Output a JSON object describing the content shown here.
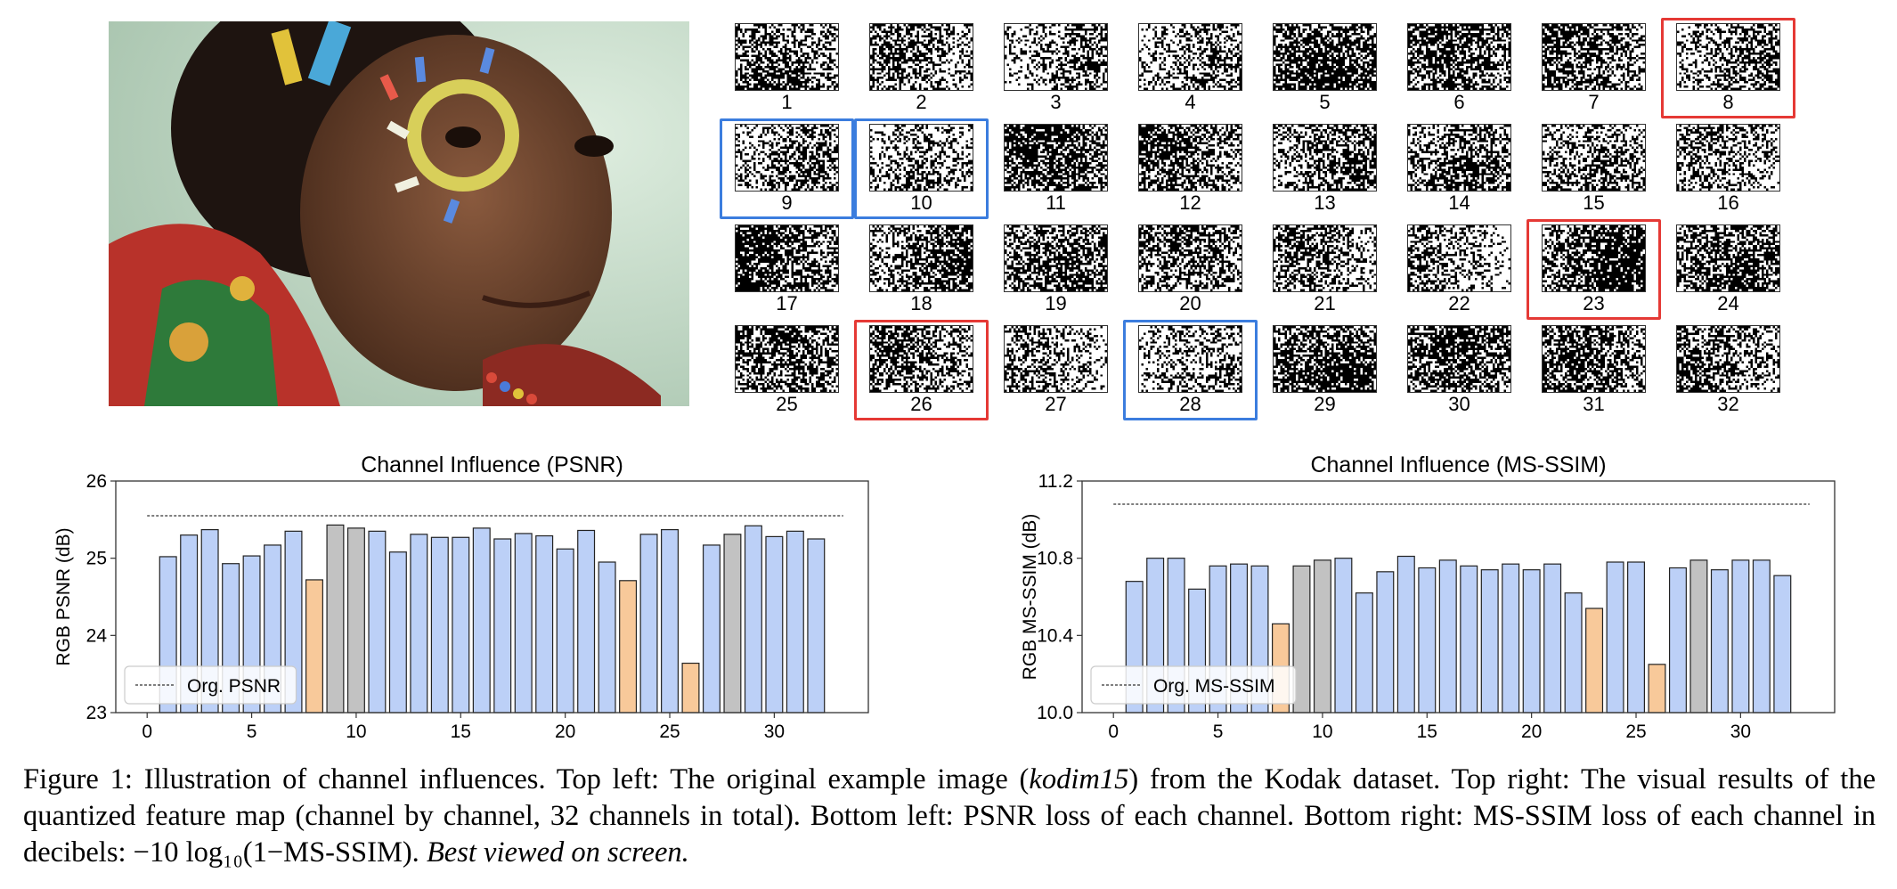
{
  "grid": {
    "channels": [
      {
        "n": "1"
      },
      {
        "n": "2"
      },
      {
        "n": "3"
      },
      {
        "n": "4"
      },
      {
        "n": "5"
      },
      {
        "n": "6"
      },
      {
        "n": "7"
      },
      {
        "n": "8",
        "hl": "red"
      },
      {
        "n": "9",
        "hl": "blue"
      },
      {
        "n": "10",
        "hl": "blue"
      },
      {
        "n": "11"
      },
      {
        "n": "12"
      },
      {
        "n": "13"
      },
      {
        "n": "14"
      },
      {
        "n": "15"
      },
      {
        "n": "16"
      },
      {
        "n": "17"
      },
      {
        "n": "18"
      },
      {
        "n": "19"
      },
      {
        "n": "20"
      },
      {
        "n": "21"
      },
      {
        "n": "22"
      },
      {
        "n": "23",
        "hl": "red"
      },
      {
        "n": "24"
      },
      {
        "n": "25"
      },
      {
        "n": "26",
        "hl": "red"
      },
      {
        "n": "27"
      },
      {
        "n": "28",
        "hl": "blue"
      },
      {
        "n": "29"
      },
      {
        "n": "30"
      },
      {
        "n": "31"
      },
      {
        "n": "32"
      }
    ],
    "highlight_colors": {
      "red": "#e53935",
      "blue": "#3b7dde"
    }
  },
  "chart_data": [
    {
      "type": "bar",
      "title": "Channel Influence (PSNR)",
      "ylabel": "RGB PSNR (dB)",
      "xlabel": "",
      "x": [
        1,
        2,
        3,
        4,
        5,
        6,
        7,
        8,
        9,
        10,
        11,
        12,
        13,
        14,
        15,
        16,
        17,
        18,
        19,
        20,
        21,
        22,
        23,
        24,
        25,
        26,
        27,
        28,
        29,
        30,
        31,
        32
      ],
      "values": [
        25.02,
        25.3,
        25.37,
        24.93,
        25.03,
        25.17,
        25.35,
        24.72,
        25.43,
        25.39,
        25.35,
        25.08,
        25.31,
        25.27,
        25.27,
        25.39,
        25.25,
        25.32,
        25.29,
        25.12,
        25.36,
        24.95,
        24.71,
        25.31,
        25.37,
        23.64,
        null,
        25.31,
        25.42,
        25.28,
        25.35,
        25.25
      ],
      "value_27": 25.17,
      "reference": {
        "label": "Org. PSNR",
        "value": 25.55
      },
      "xticks": [
        "0",
        "5",
        "10",
        "15",
        "20",
        "25",
        "30"
      ],
      "yticks": [
        "23",
        "24",
        "25",
        "26"
      ],
      "ylim": [
        23,
        26
      ],
      "xlim": [
        -1.5,
        34.5
      ],
      "legend": "lower-left",
      "colors": {
        "default": "#bcd0f7",
        "red": "#f8c99a",
        "blue": "#c2c2c2"
      }
    },
    {
      "type": "bar",
      "title": "Channel Influence (MS-SSIM)",
      "ylabel": "RGB MS-SSIM (dB)",
      "xlabel": "",
      "x": [
        1,
        2,
        3,
        4,
        5,
        6,
        7,
        8,
        9,
        10,
        11,
        12,
        13,
        14,
        15,
        16,
        17,
        18,
        19,
        20,
        21,
        22,
        23,
        24,
        25,
        26,
        27,
        28,
        29,
        30,
        31,
        32
      ],
      "values": [
        10.68,
        10.8,
        10.8,
        10.64,
        10.76,
        10.77,
        10.76,
        10.46,
        10.76,
        10.79,
        10.8,
        10.62,
        10.73,
        10.81,
        10.75,
        10.79,
        10.76,
        10.74,
        10.77,
        10.74,
        10.77,
        10.62,
        10.54,
        10.78,
        10.78,
        10.25,
        null,
        10.79,
        10.74,
        10.79,
        10.79,
        10.71
      ],
      "value_27": 10.75,
      "reference": {
        "label": "Org. MS-SSIM",
        "value": 11.08
      },
      "xticks": [
        "0",
        "5",
        "10",
        "15",
        "20",
        "25",
        "30"
      ],
      "yticks": [
        "10.0",
        "10.4",
        "10.8",
        "11.2"
      ],
      "ylim": [
        10.0,
        11.2
      ],
      "xlim": [
        -1.5,
        34.5
      ],
      "legend": "lower-left",
      "colors": {
        "default": "#bcd0f7",
        "red": "#f8c99a",
        "blue": "#c2c2c2"
      }
    }
  ],
  "caption": {
    "part1": "Figure 1: Illustration of channel influences. Top left: The original example image (",
    "image_name": "kodim15",
    "part2": ") from the Kodak dataset. Top right: The visual results of the quantized feature map (channel by channel, 32 channels in total). Bottom left: PSNR loss of each channel. Bottom right: MS-SSIM loss of each channel in decibels: ",
    "formula": "−10 log₁₀(1−MS-SSIM).",
    "emphasis": "Best viewed on screen."
  }
}
